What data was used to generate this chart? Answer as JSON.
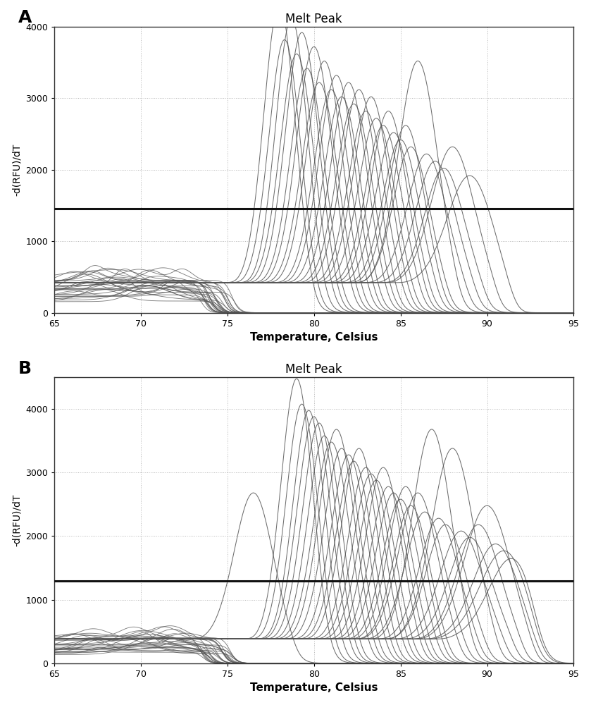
{
  "title": "Melt Peak",
  "xlabel": "Temperature, Celsius",
  "ylabel": "-d(RFU)/dT",
  "xlim": [
    65,
    95
  ],
  "panel_A": {
    "ylim": [
      0,
      4000
    ],
    "yticks": [
      0,
      1000,
      2000,
      3000,
      4000
    ],
    "hline_y": 1450,
    "baseline_level": 420,
    "peak_centers": [
      78.0,
      78.3,
      78.7,
      79.0,
      79.3,
      79.6,
      80.0,
      80.3,
      80.6,
      81.0,
      81.3,
      81.6,
      82.0,
      82.3,
      82.6,
      83.0,
      83.3,
      83.6,
      84.0,
      84.3,
      84.6,
      85.0,
      85.3,
      85.6,
      86.0,
      86.5,
      87.0,
      87.5,
      88.0,
      89.0
    ],
    "peak_heights": [
      3900,
      3400,
      3700,
      3200,
      3500,
      3000,
      3300,
      2800,
      3100,
      2700,
      2900,
      2600,
      2800,
      2500,
      2700,
      2400,
      2600,
      2300,
      2200,
      2400,
      2100,
      2000,
      2200,
      1900,
      3100,
      1800,
      1700,
      1600,
      1900,
      1500
    ],
    "peak_widths": [
      0.9,
      0.9,
      0.9,
      0.95,
      0.95,
      0.95,
      1.0,
      1.0,
      1.0,
      1.0,
      1.0,
      1.0,
      1.0,
      1.0,
      1.0,
      1.0,
      1.0,
      1.0,
      1.0,
      1.0,
      1.0,
      1.0,
      1.0,
      1.0,
      1.1,
      1.1,
      1.1,
      1.1,
      1.2,
      1.3
    ],
    "global_dropoff": 91.5
  },
  "panel_B": {
    "ylim": [
      0,
      4500
    ],
    "yticks": [
      0,
      1000,
      2000,
      3000,
      4000
    ],
    "hline_y": 1300,
    "baseline_level": 380,
    "peak_centers": [
      76.5,
      79.0,
      79.3,
      79.7,
      80.0,
      80.3,
      80.6,
      81.0,
      81.3,
      81.6,
      82.0,
      82.3,
      82.6,
      83.0,
      83.3,
      83.6,
      84.0,
      84.3,
      84.6,
      85.0,
      85.3,
      85.6,
      86.0,
      86.4,
      86.8,
      87.2,
      87.6,
      88.0,
      88.5,
      89.0,
      89.5,
      90.0,
      90.5,
      91.0,
      91.5
    ],
    "peak_heights": [
      2300,
      4100,
      3700,
      3600,
      3500,
      3400,
      3200,
      3100,
      3300,
      3000,
      2900,
      2800,
      3000,
      2700,
      2600,
      2500,
      2700,
      2400,
      2300,
      2200,
      2400,
      2100,
      2300,
      2000,
      3300,
      1900,
      1800,
      3000,
      1700,
      1600,
      1800,
      2100,
      1500,
      1400,
      1300
    ],
    "peak_widths": [
      1.1,
      0.9,
      0.9,
      0.9,
      0.95,
      0.95,
      0.95,
      1.0,
      1.0,
      1.0,
      1.0,
      1.0,
      1.0,
      1.0,
      1.0,
      1.0,
      1.0,
      1.0,
      1.0,
      1.0,
      1.0,
      1.0,
      1.1,
      1.1,
      1.1,
      1.1,
      1.1,
      1.2,
      1.2,
      1.2,
      1.2,
      1.3,
      1.3,
      1.4,
      1.4
    ],
    "global_dropoff": 93.0
  },
  "line_color": "#555555",
  "hline_color": "#111111",
  "bg_color": "#ffffff",
  "grid_color": "#999999"
}
